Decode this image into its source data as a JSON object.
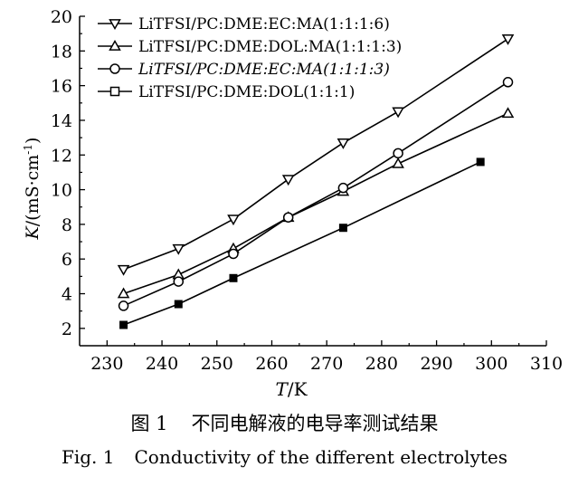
{
  "chart_data": {
    "type": "line",
    "xlabel_var": "T",
    "xlabel_unit": "/K",
    "ylabel_var": "K",
    "ylabel_unit": "/(mS·cm",
    "ylabel_sup": "-1",
    "ylabel_close": ")",
    "xlim": [
      225,
      310
    ],
    "ylim": [
      1,
      20
    ],
    "xticks": [
      230,
      240,
      250,
      260,
      270,
      280,
      290,
      300,
      310
    ],
    "yticks": [
      2,
      4,
      6,
      8,
      10,
      12,
      14,
      16,
      18,
      20
    ],
    "legend_position": "top-left",
    "series": [
      {
        "name": "LiTFSI/PC:DME:EC:MA(1:1:1:6)",
        "marker": "triangle-down",
        "italic": false,
        "x": [
          233,
          243,
          253,
          263,
          273,
          283,
          303
        ],
        "y": [
          5.4,
          6.6,
          8.3,
          10.6,
          12.7,
          14.5,
          18.7
        ]
      },
      {
        "name": "LiTFSI/PC:DME:DOL:MA(1:1:1:3)",
        "marker": "triangle-up",
        "italic": false,
        "x": [
          233,
          243,
          253,
          263,
          273,
          283,
          303
        ],
        "y": [
          4.0,
          5.1,
          6.6,
          8.4,
          9.9,
          11.5,
          14.4
        ]
      },
      {
        "name": "LiTFSI/PC:DME:EC:MA(1:1:1:3)",
        "marker": "circle",
        "italic": true,
        "x": [
          233,
          243,
          253,
          263,
          273,
          283,
          303
        ],
        "y": [
          3.3,
          4.7,
          6.3,
          8.4,
          10.1,
          12.1,
          16.2
        ]
      },
      {
        "name": "LiTFSI/PC:DME:DOL(1:1:1)",
        "marker": "square-filled",
        "italic": false,
        "x": [
          233,
          243,
          253,
          273,
          298
        ],
        "y": [
          2.2,
          3.4,
          4.9,
          7.8,
          11.6
        ]
      }
    ]
  },
  "caption": {
    "cn_num": "图 1",
    "cn_text": "不同电解液的电导率测试结果",
    "en_num": "Fig. 1",
    "en_text": "Conductivity of the different electrolytes"
  }
}
